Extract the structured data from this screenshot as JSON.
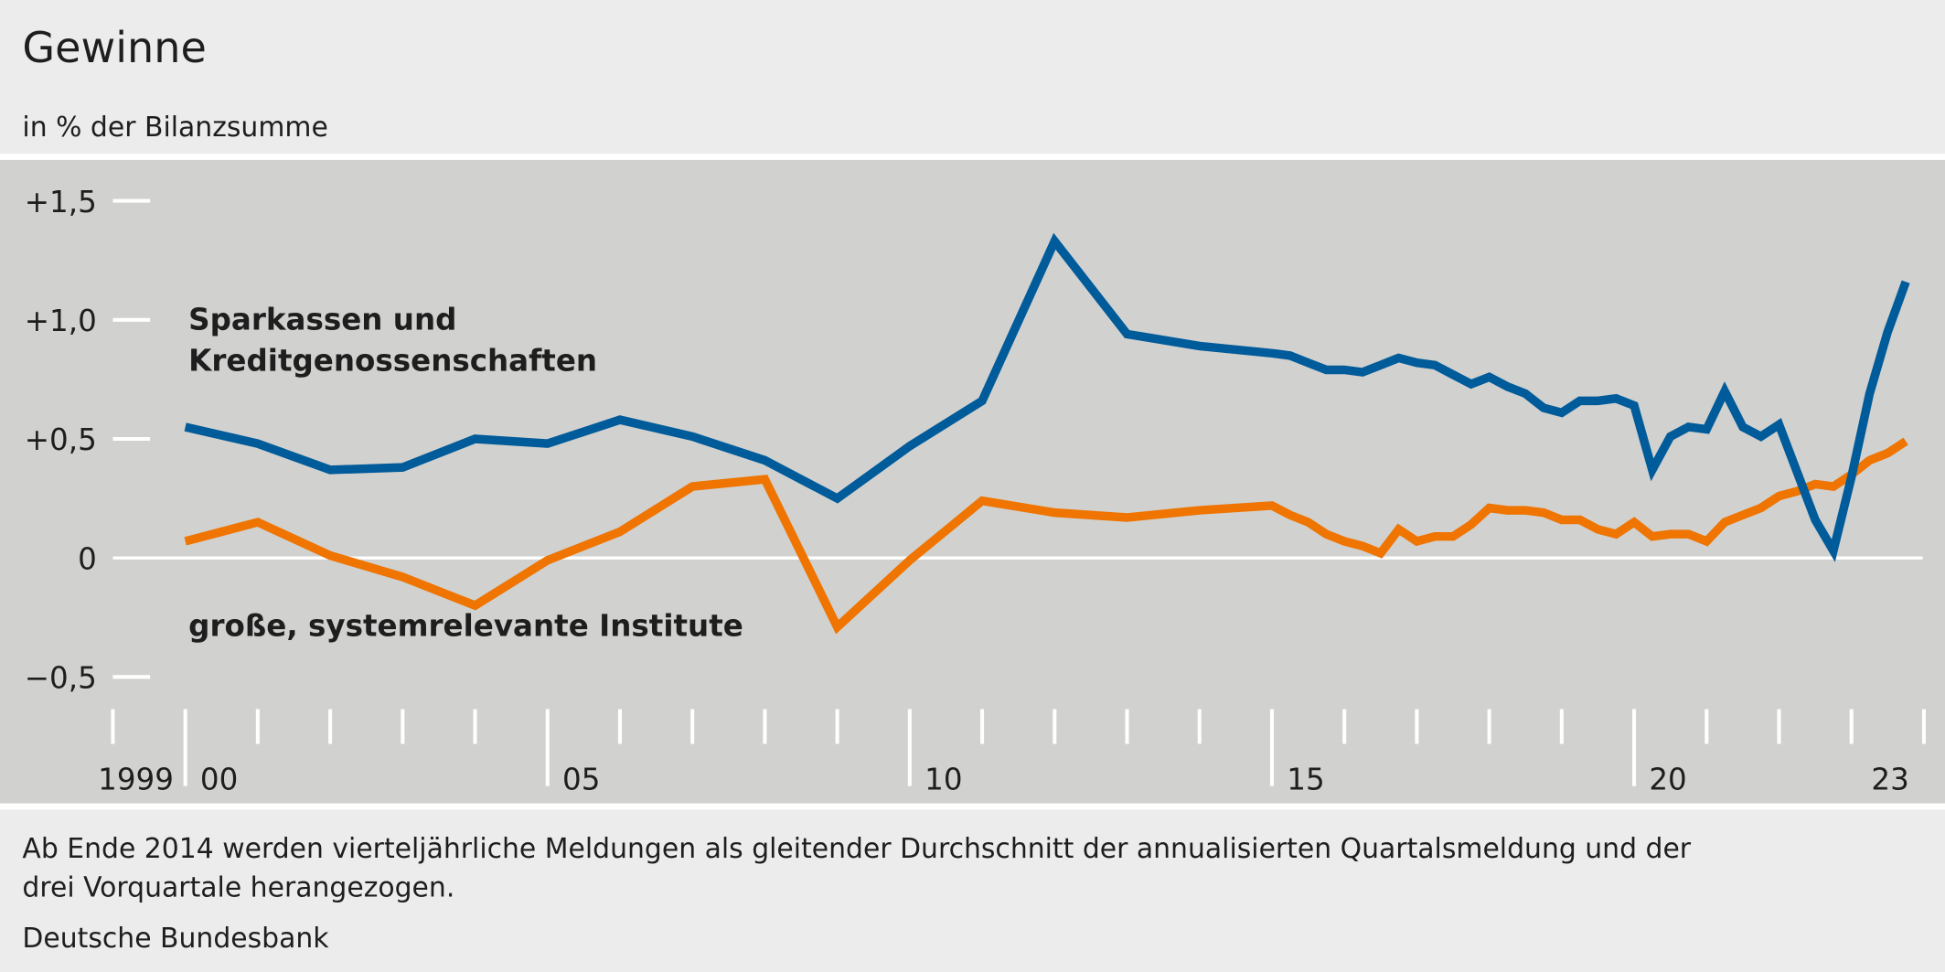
{
  "chart_data": {
    "type": "line",
    "title": "Gewinne",
    "subtitle": "in % der Bilanzsumme",
    "xlabel": "",
    "ylabel": "in % der Bilanzsumme",
    "ylim": [
      -0.7,
      1.6
    ],
    "yticks": [
      {
        "value": 1.5,
        "label": "+1,5"
      },
      {
        "value": 1.0,
        "label": "+1,0"
      },
      {
        "value": 0.5,
        "label": "+0,5"
      },
      {
        "value": 0,
        "label": "0"
      },
      {
        "value": -0.5,
        "label": "−0,5"
      }
    ],
    "xticks": [
      {
        "year": 1999,
        "label": "1999"
      },
      {
        "year": 2000,
        "label": "00"
      },
      {
        "year": 2005,
        "label": "05"
      },
      {
        "year": 2010,
        "label": "10"
      },
      {
        "year": 2015,
        "label": "15"
      },
      {
        "year": 2020,
        "label": "20"
      },
      {
        "year": 2023,
        "label": "23"
      }
    ],
    "xlim": [
      1999,
      2024
    ],
    "x_note": "x values are end-of-period time in years (annual to 2014, quarterly thereafter)",
    "x": [
      2000,
      2001,
      2002,
      2003,
      2004,
      2005,
      2006,
      2007,
      2008,
      2009,
      2010,
      2011,
      2012,
      2013,
      2014,
      2015,
      2015.25,
      2015.5,
      2015.75,
      2016,
      2016.25,
      2016.5,
      2016.75,
      2017,
      2017.25,
      2017.5,
      2017.75,
      2018,
      2018.25,
      2018.5,
      2018.75,
      2019,
      2019.25,
      2019.5,
      2019.75,
      2020,
      2020.25,
      2020.5,
      2020.75,
      2021,
      2021.25,
      2021.5,
      2021.75,
      2022,
      2022.25,
      2022.5,
      2022.75,
      2023,
      2023.25,
      2023.5,
      2023.75
    ],
    "series": [
      {
        "name": "Sparkassen und Kreditgenossenschaften",
        "label_lines": [
          "Sparkassen und",
          "Kreditgenossenschaften"
        ],
        "color": "#005b9a",
        "values": [
          0.55,
          0.48,
          0.37,
          0.38,
          0.5,
          0.48,
          0.58,
          0.51,
          0.41,
          0.25,
          0.47,
          0.66,
          1.33,
          0.94,
          0.89,
          0.86,
          0.85,
          0.82,
          0.79,
          0.79,
          0.78,
          0.81,
          0.84,
          0.82,
          0.81,
          0.77,
          0.73,
          0.76,
          0.72,
          0.69,
          0.63,
          0.61,
          0.66,
          0.66,
          0.67,
          0.64,
          0.37,
          0.51,
          0.55,
          0.54,
          0.7,
          0.55,
          0.51,
          0.56,
          0.36,
          0.16,
          0.03,
          0.34,
          0.69,
          0.95,
          1.16
        ]
      },
      {
        "name": "große, systemrelevante Institute",
        "label_lines": [
          "große, systemrelevante Institute"
        ],
        "color": "#ef7400",
        "values": [
          0.07,
          0.15,
          0.01,
          -0.08,
          -0.2,
          -0.01,
          0.11,
          0.3,
          0.33,
          -0.29,
          -0.01,
          0.24,
          0.19,
          0.17,
          0.2,
          0.22,
          0.18,
          0.15,
          0.1,
          0.07,
          0.05,
          0.02,
          0.12,
          0.07,
          0.09,
          0.09,
          0.14,
          0.21,
          0.2,
          0.2,
          0.19,
          0.16,
          0.16,
          0.12,
          0.1,
          0.15,
          0.09,
          0.1,
          0.1,
          0.07,
          0.15,
          0.18,
          0.21,
          0.26,
          0.28,
          0.31,
          0.3,
          0.35,
          0.41,
          0.44,
          0.49
        ]
      }
    ],
    "grid": false,
    "legend": "inline labels"
  },
  "footnote_lines": [
    "Ab Ende 2014 werden vierteljährliche Meldungen als gleitender Durchschnitt der annualisierten Quartalsmeldung und der",
    "drei Vorquartale herangezogen."
  ],
  "source": "Deutsche Bundesbank"
}
